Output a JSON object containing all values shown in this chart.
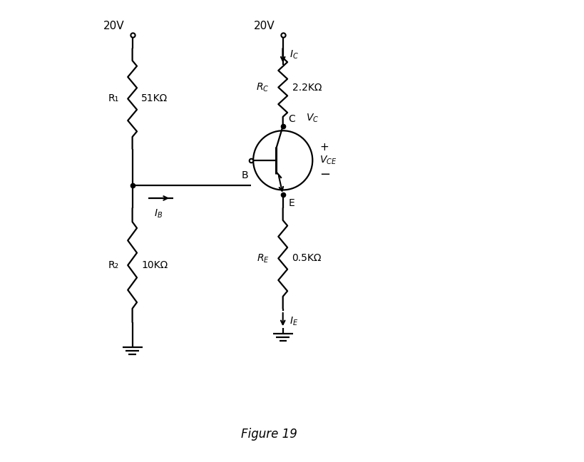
{
  "title": "Figure 19",
  "background_color": "#ffffff",
  "line_color": "#000000",
  "text_color": "#000000",
  "fig_width": 8.19,
  "fig_height": 6.48,
  "vcc_left": "20V",
  "vcc_right": "20V",
  "r1_label": "R₁",
  "r1_value": "51KΩ",
  "r2_label": "R₂",
  "r2_value": "10KΩ",
  "rc_value": "2.2KΩ",
  "re_value": "0.5KΩ",
  "node_c": "C",
  "node_b": "B",
  "node_e": "E"
}
